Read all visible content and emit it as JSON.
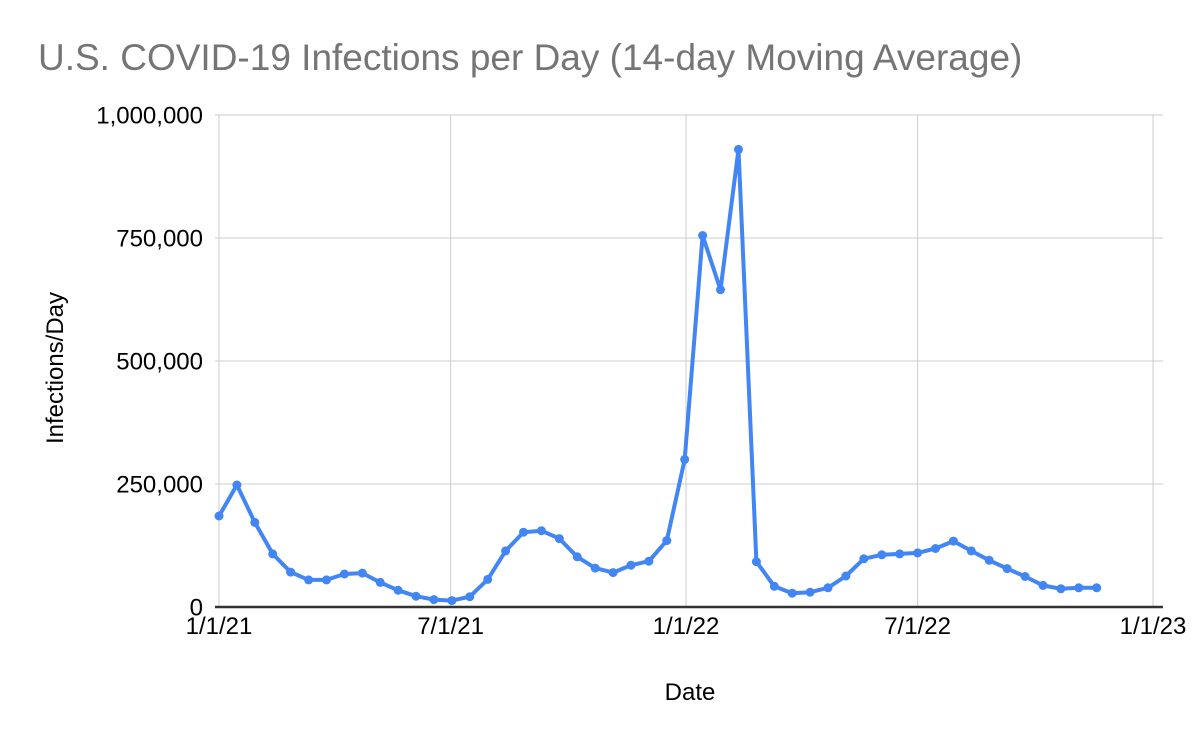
{
  "page": {
    "background_color": "#ffffff"
  },
  "chart_data": {
    "type": "line",
    "title": "U.S. COVID-19 Infections per Day (14-day Moving Average)",
    "xlabel": "Date",
    "ylabel": "Infections/Day",
    "legend": "none",
    "grid": true,
    "ylim": [
      0,
      1000000
    ],
    "y_ticks": [
      {
        "value": 0,
        "label": "0"
      },
      {
        "value": 250000,
        "label": "250,000"
      },
      {
        "value": 500000,
        "label": "500,000"
      },
      {
        "value": 750000,
        "label": "750,000"
      },
      {
        "value": 1000000,
        "label": "1,000,000"
      }
    ],
    "x_ticks": [
      {
        "label": "1/1/21"
      },
      {
        "label": "7/1/21"
      },
      {
        "label": "1/1/22"
      },
      {
        "label": "7/1/22"
      },
      {
        "label": "1/1/23"
      }
    ],
    "x": [
      "1/1/21",
      "1/15/21",
      "1/29/21",
      "2/12/21",
      "2/26/21",
      "3/12/21",
      "3/26/21",
      "4/9/21",
      "4/23/21",
      "5/7/21",
      "5/21/21",
      "6/4/21",
      "6/18/21",
      "7/2/21",
      "7/16/21",
      "7/30/21",
      "8/13/21",
      "8/27/21",
      "9/10/21",
      "9/24/21",
      "10/8/21",
      "10/22/21",
      "11/5/21",
      "11/19/21",
      "12/3/21",
      "12/17/21",
      "12/31/21",
      "1/14/22",
      "1/28/22",
      "2/11/22",
      "2/25/22",
      "3/11/22",
      "3/25/22",
      "4/8/22",
      "4/22/22",
      "5/6/22",
      "5/20/22",
      "6/3/22",
      "6/17/22",
      "7/1/22",
      "7/15/22",
      "7/29/22",
      "8/12/22",
      "8/26/22",
      "9/9/22",
      "9/23/22",
      "10/7/22",
      "10/21/22",
      "11/4/22",
      "11/18/22"
    ],
    "values": [
      185000,
      248000,
      172000,
      108000,
      71000,
      55000,
      55000,
      67000,
      69000,
      50000,
      34000,
      22000,
      15000,
      13000,
      21000,
      56000,
      114000,
      152000,
      155000,
      139000,
      102000,
      79000,
      70000,
      85000,
      93000,
      135000,
      300000,
      755000,
      645000,
      930000,
      92000,
      42000,
      28000,
      30000,
      39000,
      63000,
      98000,
      106000,
      108000,
      110000,
      119000,
      134000,
      114000,
      95000,
      78000,
      62000,
      44000,
      37000,
      39000,
      39000
    ],
    "colors": {
      "line": "#4285f4",
      "point": "#4285f4",
      "gridline": "#cccccc",
      "axis_line": "#333333",
      "title_text": "#757575",
      "tick_text": "#000000"
    }
  }
}
